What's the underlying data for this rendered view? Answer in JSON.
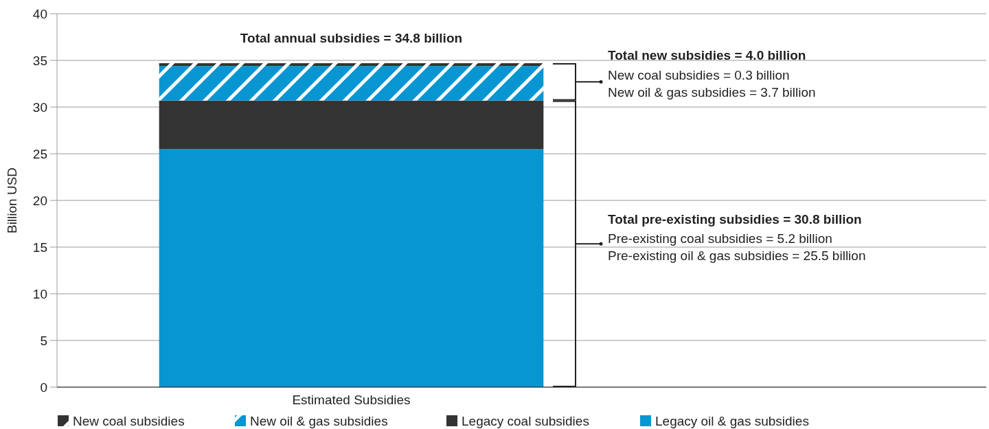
{
  "chart_data": {
    "type": "bar",
    "stacked": true,
    "categories": [
      "Estimated Subsidies"
    ],
    "ylabel": "Billion USD",
    "ylim": [
      0,
      40
    ],
    "yticks": [
      0,
      5,
      10,
      15,
      20,
      25,
      30,
      35,
      40
    ],
    "grid": "y",
    "legend": "bottom",
    "series": [
      {
        "name": "Legacy oil & gas subsidies",
        "color": "#0896d3",
        "values": [
          25.5
        ]
      },
      {
        "name": "Legacy coal subsidies",
        "color": "#333333",
        "values": [
          5.2
        ]
      },
      {
        "name": "New oil & gas subsidies",
        "color": "#0896d3",
        "values": [
          3.7
        ]
      },
      {
        "name": "New coal subsidies",
        "color": "#333333",
        "values": [
          0.3
        ]
      }
    ],
    "annotations": [
      "Total annual subsidies = 34.8 billion",
      "Total new subsidies = 4.0 billion",
      "New coal subsidies = 0.3 billion",
      "New oil & gas subsidies = 3.7 billion",
      "Total pre-existing subsidies = 30.8 billion",
      "Pre-existing coal subsidies = 5.2 billion",
      "Pre-existing oil & gas subsidies = 25.5 billion"
    ]
  }
}
